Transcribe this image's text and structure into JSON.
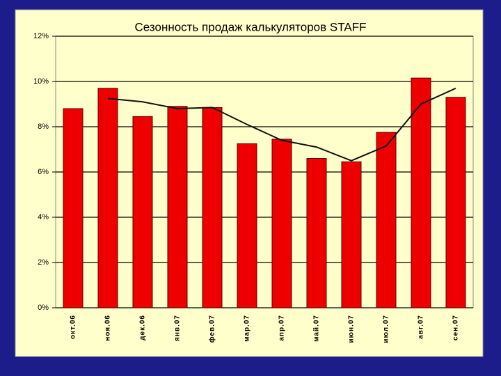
{
  "chart_data": {
    "type": "bar",
    "title": "Сезонность продаж калькуляторов STAFF",
    "categories": [
      "окт.06",
      "ноя.06",
      "дек.06",
      "янв.07",
      "фев.07",
      "мар.07",
      "апр.07",
      "май.07",
      "июн.07",
      "июл.07",
      "авг.07",
      "сен.07"
    ],
    "series": [
      {
        "type": "bar",
        "color": "#ee0000",
        "values": [
          8.8,
          9.7,
          8.45,
          8.9,
          8.85,
          7.25,
          7.45,
          6.6,
          6.45,
          7.75,
          10.15,
          9.3
        ]
      },
      {
        "type": "line",
        "color": "#111111",
        "values": [
          null,
          9.25,
          9.1,
          8.8,
          8.85,
          8.1,
          7.4,
          7.1,
          6.5,
          7.15,
          9.0,
          9.7
        ]
      }
    ],
    "ylim": [
      0,
      12
    ],
    "yticks": [
      {
        "value": 0,
        "label": "0%"
      },
      {
        "value": 2,
        "label": "2%"
      },
      {
        "value": 4,
        "label": "4%"
      },
      {
        "value": 6,
        "label": "6%"
      },
      {
        "value": 8,
        "label": "8%"
      },
      {
        "value": 10,
        "label": "10%"
      },
      {
        "value": 12,
        "label": "12%"
      }
    ],
    "grid": true
  }
}
